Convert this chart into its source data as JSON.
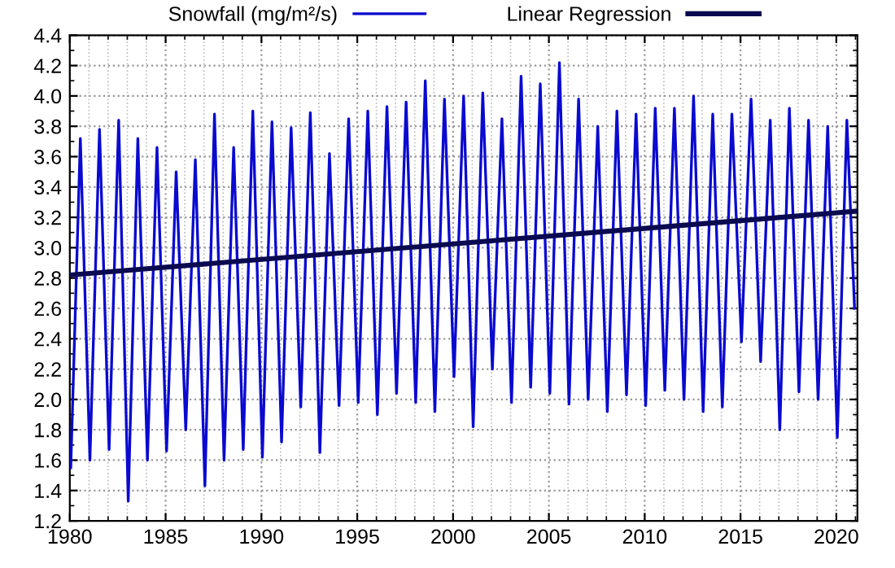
{
  "chart_data": {
    "type": "line",
    "xlim": [
      1980,
      2021.1
    ],
    "xticks": [
      1980,
      1985,
      1990,
      1995,
      2000,
      2005,
      2010,
      2015,
      2020
    ],
    "ylim": [
      1.2,
      4.4
    ],
    "yticks": [
      1.2,
      1.4,
      1.6,
      1.8,
      {
        "value": 2,
        "label": "2.0"
      },
      2.2,
      2.4,
      2.6,
      2.8,
      {
        "value": 3,
        "label": "3.0"
      },
      3.2,
      3.4,
      3.6,
      3.8,
      {
        "value": 4,
        "label": "4.0"
      },
      4.2,
      4.4
    ],
    "grid": true,
    "legend": "top",
    "line_style": "solid",
    "series": [
      {
        "name": "Snowfall (mg/m²/s)",
        "color": "#0a0ad0",
        "x": [
          1980.05,
          1980.55,
          1981.05,
          1981.55,
          1982.05,
          1982.55,
          1983.05,
          1983.55,
          1984.05,
          1984.55,
          1985.05,
          1985.55,
          1986.05,
          1986.55,
          1987.05,
          1987.55,
          1988.05,
          1988.55,
          1989.05,
          1989.55,
          1990.05,
          1990.55,
          1991.05,
          1991.55,
          1992.05,
          1992.55,
          1993.05,
          1993.55,
          1994.05,
          1994.55,
          1995.05,
          1995.55,
          1996.05,
          1996.55,
          1997.05,
          1997.55,
          1998.05,
          1998.55,
          1999.05,
          1999.55,
          2000.05,
          2000.55,
          2001.05,
          2001.55,
          2002.05,
          2002.55,
          2003.05,
          2003.55,
          2004.05,
          2004.55,
          2005.05,
          2005.55,
          2006.05,
          2006.55,
          2007.05,
          2007.55,
          2008.05,
          2008.55,
          2009.05,
          2009.55,
          2010.05,
          2010.55,
          2011.05,
          2011.55,
          2012.05,
          2012.55,
          2013.05,
          2013.55,
          2014.05,
          2014.55,
          2015.05,
          2015.55,
          2016.05,
          2016.55,
          2017.05,
          2017.55,
          2018.05,
          2018.55,
          2019.05,
          2019.55,
          2020.05,
          2020.55,
          2020.95
        ],
        "values": [
          1.55,
          3.72,
          1.6,
          3.78,
          1.67,
          3.84,
          1.33,
          3.72,
          1.6,
          3.66,
          1.66,
          3.5,
          1.8,
          3.58,
          1.43,
          3.88,
          1.6,
          3.66,
          1.67,
          3.9,
          1.62,
          3.83,
          1.72,
          3.79,
          1.95,
          3.89,
          1.65,
          3.62,
          1.96,
          3.85,
          1.98,
          3.9,
          1.9,
          3.93,
          2.04,
          3.96,
          1.98,
          4.1,
          1.92,
          3.98,
          2.15,
          4.0,
          1.82,
          4.02,
          2.2,
          3.85,
          1.98,
          4.13,
          2.08,
          4.08,
          2.04,
          4.22,
          1.97,
          3.98,
          2.0,
          3.8,
          1.92,
          3.9,
          2.03,
          3.88,
          1.96,
          3.92,
          2.06,
          3.92,
          2.0,
          4.0,
          1.92,
          3.88,
          1.95,
          3.88,
          2.38,
          3.98,
          2.25,
          3.84,
          1.8,
          3.92,
          2.05,
          3.84,
          2.0,
          3.8,
          1.75,
          3.84,
          2.6
        ]
      },
      {
        "name": "Linear Regression",
        "color": "#0a0a50",
        "x": [
          1980,
          2021
        ],
        "values": [
          2.82,
          3.24
        ]
      }
    ]
  }
}
